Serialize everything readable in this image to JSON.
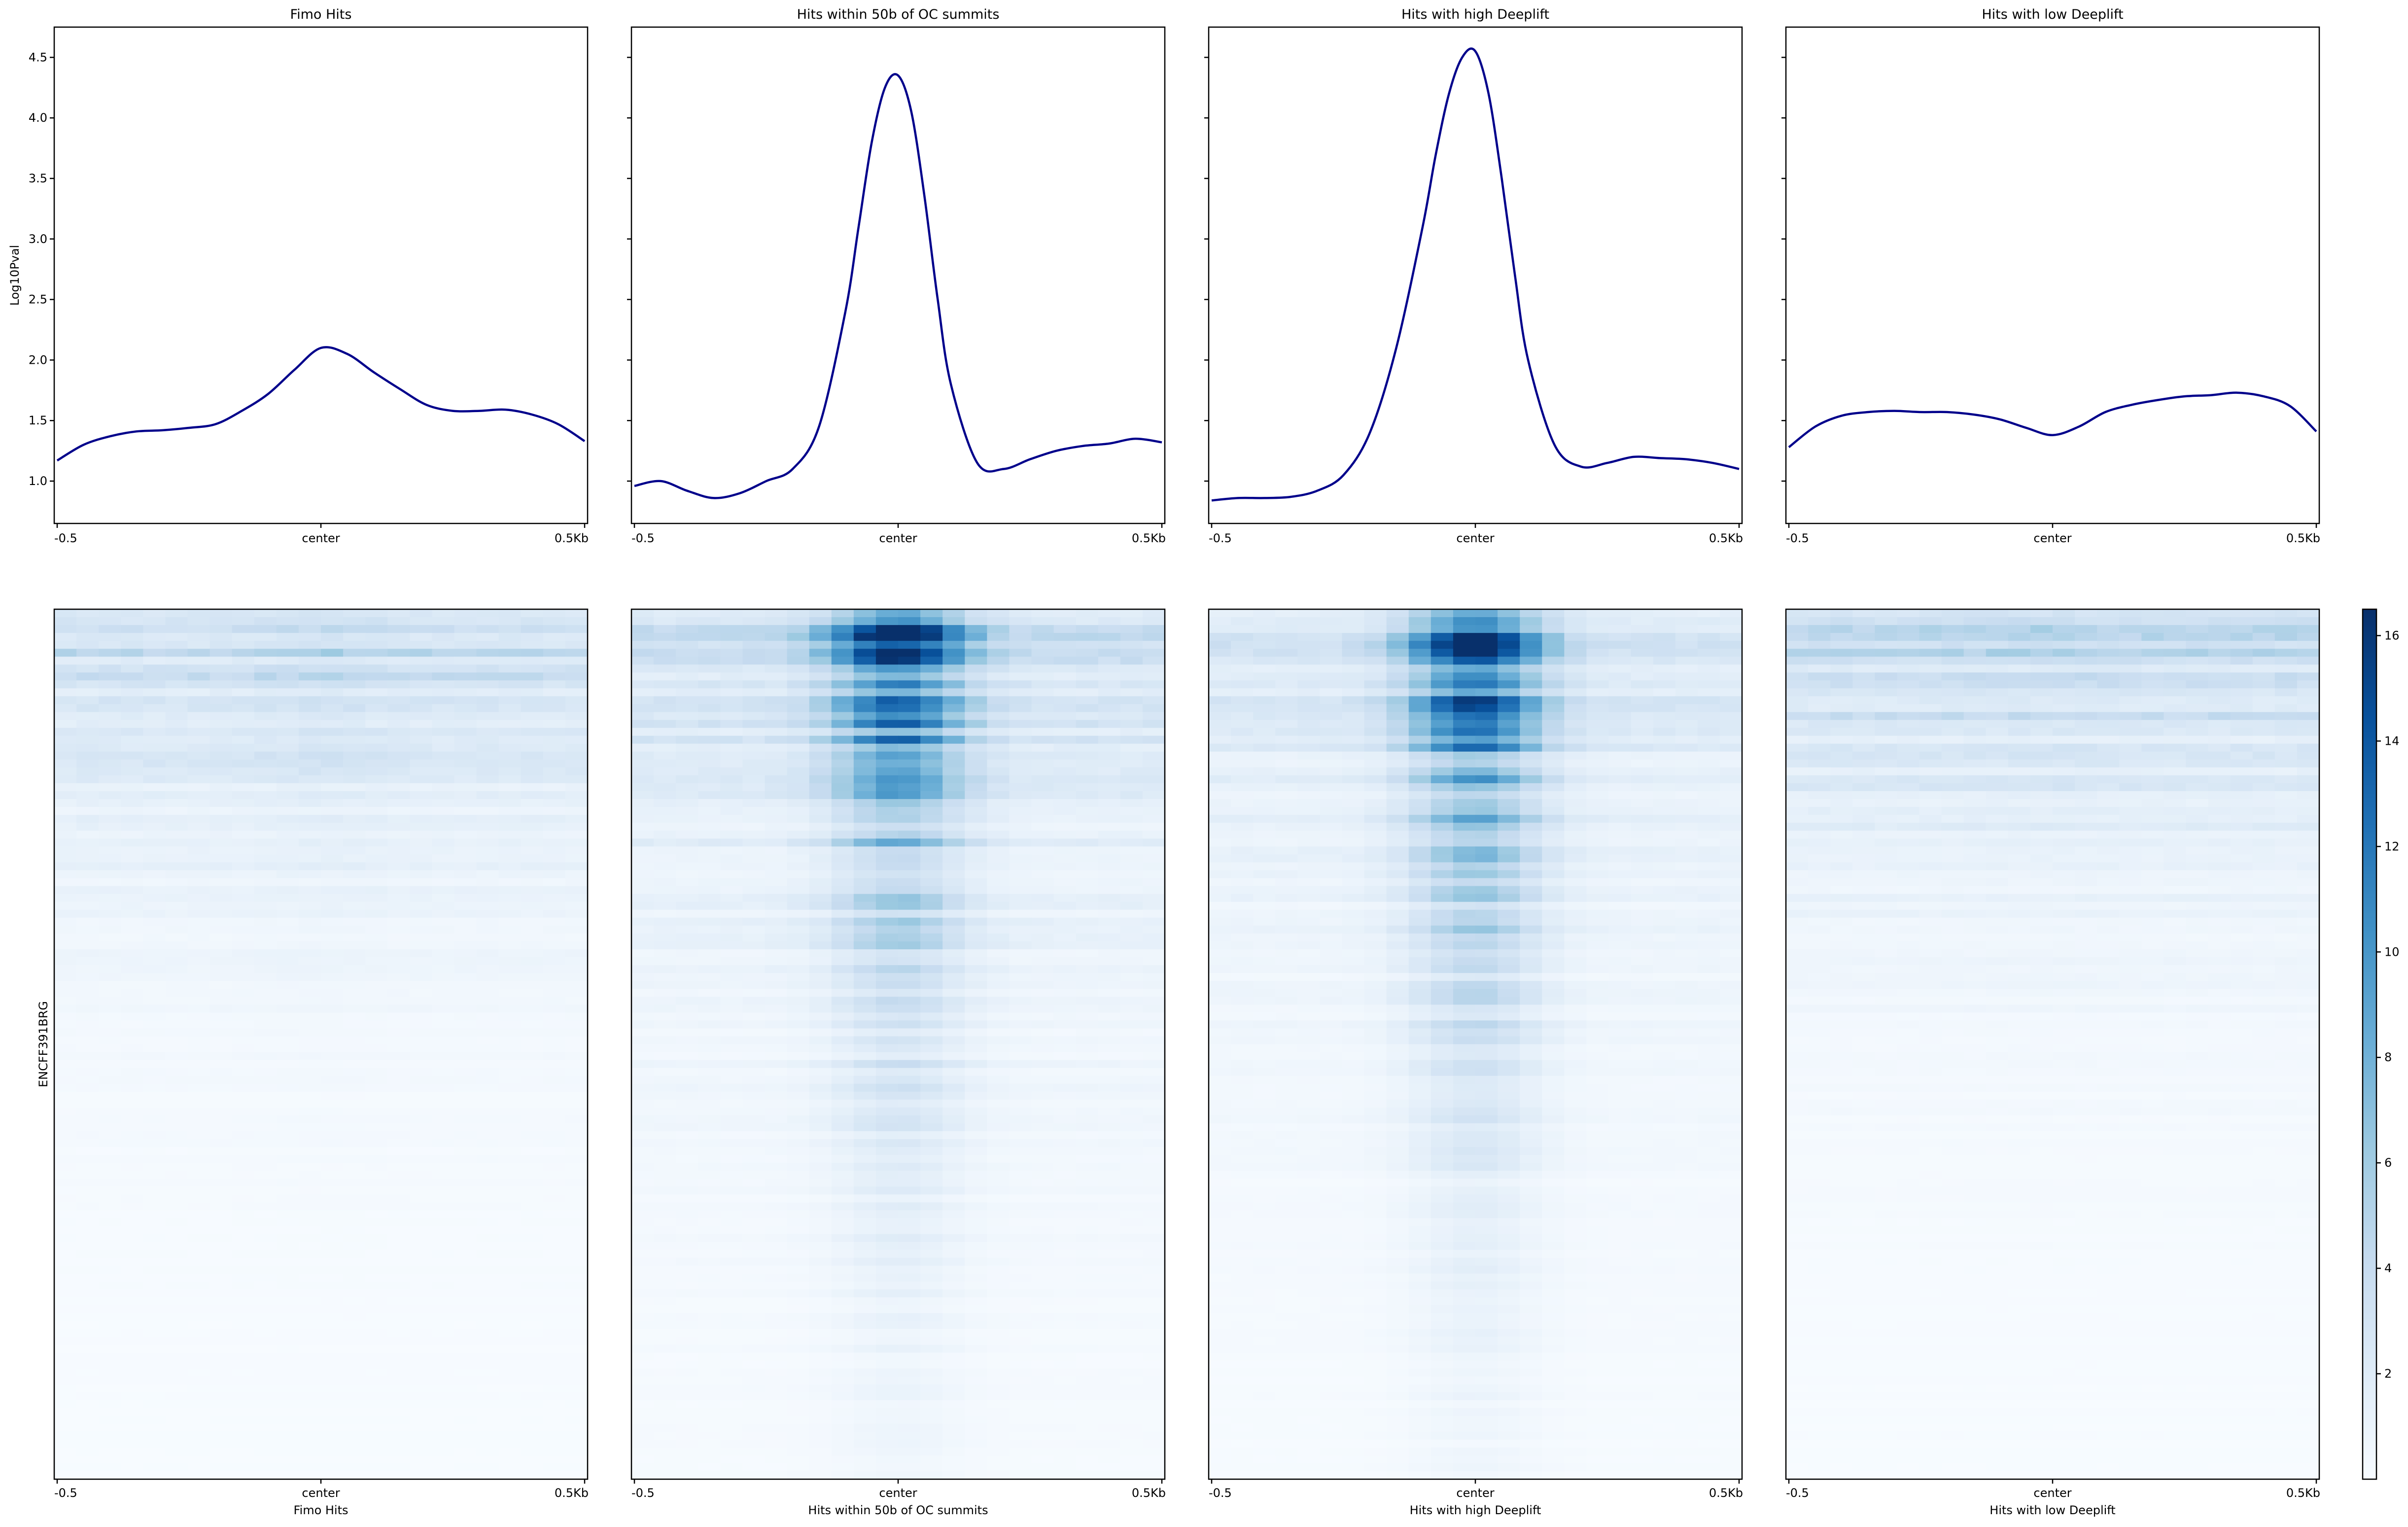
{
  "colors": {
    "profile_line": "#00008b",
    "heatmap_low": "#f7fbff",
    "heatmap_high": "#08306b"
  },
  "y_label": "Log10Pval",
  "heatmap_y_label": "ENCFF391BRG",
  "chart_data": [
    {
      "type": "line",
      "panel": "Fimo Hits",
      "title": "Fimo Hits",
      "xlabel": "",
      "ylabel": "Log10Pval",
      "xlim": [
        -0.5,
        0.5
      ],
      "ylim": [
        0.65,
        4.75
      ],
      "xticklabels": [
        "-0.5",
        "center",
        "0.5Kb"
      ],
      "yticks": [
        1.0,
        1.5,
        2.0,
        2.5,
        3.0,
        3.5,
        4.0,
        4.5
      ],
      "grid": false,
      "series": [
        {
          "x": [
            -0.5,
            -0.45,
            -0.4,
            -0.35,
            -0.3,
            -0.25,
            -0.2,
            -0.15,
            -0.1,
            -0.05,
            0.0,
            0.05,
            0.1,
            0.15,
            0.2,
            0.25,
            0.3,
            0.35,
            0.4,
            0.45,
            0.5
          ],
          "y": [
            1.17,
            1.3,
            1.37,
            1.41,
            1.42,
            1.44,
            1.47,
            1.58,
            1.72,
            1.92,
            2.1,
            2.05,
            1.9,
            1.76,
            1.63,
            1.58,
            1.58,
            1.59,
            1.55,
            1.47,
            1.33
          ]
        }
      ]
    },
    {
      "type": "line",
      "panel": "Hits within 50b of OC summits",
      "title": "Hits within 50b of OC summits",
      "xlabel": "",
      "xlim": [
        -0.5,
        0.5
      ],
      "ylim": [
        0.65,
        4.75
      ],
      "xticklabels": [
        "-0.5",
        "center",
        "0.5Kb"
      ],
      "grid": false,
      "series": [
        {
          "x": [
            -0.5,
            -0.45,
            -0.4,
            -0.35,
            -0.3,
            -0.25,
            -0.2,
            -0.15,
            -0.1,
            -0.075,
            -0.05,
            -0.025,
            0.0,
            0.025,
            0.05,
            0.075,
            0.1,
            0.15,
            0.2,
            0.25,
            0.3,
            0.35,
            0.4,
            0.45,
            0.5
          ],
          "y": [
            0.96,
            1.0,
            0.92,
            0.86,
            0.9,
            1.0,
            1.1,
            1.45,
            2.4,
            3.1,
            3.8,
            4.25,
            4.35,
            4.05,
            3.35,
            2.5,
            1.8,
            1.15,
            1.1,
            1.18,
            1.25,
            1.29,
            1.31,
            1.35,
            1.32
          ]
        }
      ]
    },
    {
      "type": "line",
      "panel": "Hits with high Deeplift",
      "title": "Hits with high Deeplift",
      "xlabel": "",
      "xlim": [
        -0.5,
        0.5
      ],
      "ylim": [
        0.65,
        4.75
      ],
      "xticklabels": [
        "-0.5",
        "center",
        "0.5Kb"
      ],
      "grid": false,
      "series": [
        {
          "x": [
            -0.5,
            -0.45,
            -0.4,
            -0.35,
            -0.3,
            -0.25,
            -0.2,
            -0.15,
            -0.1,
            -0.075,
            -0.05,
            -0.025,
            0.0,
            0.025,
            0.05,
            0.075,
            0.1,
            0.15,
            0.2,
            0.25,
            0.3,
            0.35,
            0.4,
            0.45,
            0.5
          ],
          "y": [
            0.84,
            0.86,
            0.86,
            0.87,
            0.92,
            1.05,
            1.4,
            2.1,
            3.1,
            3.7,
            4.2,
            4.5,
            4.55,
            4.2,
            3.5,
            2.7,
            2.0,
            1.3,
            1.12,
            1.15,
            1.2,
            1.19,
            1.18,
            1.15,
            1.1
          ]
        }
      ]
    },
    {
      "type": "line",
      "panel": "Hits with low Deeplift",
      "title": "Hits with low Deeplift",
      "xlabel": "",
      "xlim": [
        -0.5,
        0.5
      ],
      "ylim": [
        0.65,
        4.75
      ],
      "xticklabels": [
        "-0.5",
        "center",
        "0.5Kb"
      ],
      "grid": false,
      "series": [
        {
          "x": [
            -0.5,
            -0.45,
            -0.4,
            -0.35,
            -0.3,
            -0.25,
            -0.2,
            -0.15,
            -0.1,
            -0.05,
            0.0,
            0.05,
            0.1,
            0.15,
            0.2,
            0.25,
            0.3,
            0.35,
            0.4,
            0.45,
            0.5
          ],
          "y": [
            1.28,
            1.45,
            1.54,
            1.57,
            1.58,
            1.57,
            1.57,
            1.55,
            1.51,
            1.44,
            1.38,
            1.45,
            1.57,
            1.63,
            1.67,
            1.7,
            1.71,
            1.73,
            1.7,
            1.62,
            1.41
          ]
        }
      ]
    },
    {
      "type": "heatmap",
      "panel": "Fimo Hits",
      "xlabel": "Fimo Hits",
      "ylabel": "ENCFF391BRG",
      "xticklabels": [
        "-0.5",
        "center",
        "0.5Kb"
      ],
      "colormap": "Blues",
      "peak_value": 6,
      "center_focus": 0.15,
      "band_fraction": 0.2
    },
    {
      "type": "heatmap",
      "panel": "Hits within 50b of OC summits",
      "xlabel": "Hits within 50b of OC summits",
      "xticklabels": [
        "-0.5",
        "center",
        "0.5Kb"
      ],
      "colormap": "Blues",
      "peak_value": 16,
      "center_focus": 0.75,
      "band_fraction": 0.3
    },
    {
      "type": "heatmap",
      "panel": "Hits with high Deeplift",
      "xlabel": "Hits with high Deeplift",
      "xticklabels": [
        "-0.5",
        "center",
        "0.5Kb"
      ],
      "colormap": "Blues",
      "peak_value": 16,
      "center_focus": 0.8,
      "band_fraction": 0.3
    },
    {
      "type": "heatmap",
      "panel": "Hits with low Deeplift",
      "xlabel": "Hits with low Deeplift",
      "xticklabels": [
        "-0.5",
        "center",
        "0.5Kb"
      ],
      "colormap": "Blues",
      "peak_value": 6,
      "center_focus": 0.05,
      "band_fraction": 0.2
    }
  ],
  "colorbar": {
    "ticks": [
      2,
      4,
      6,
      8,
      10,
      12,
      14,
      16
    ],
    "vmin": 0,
    "vmax": 16.5,
    "colormap": "Blues"
  }
}
